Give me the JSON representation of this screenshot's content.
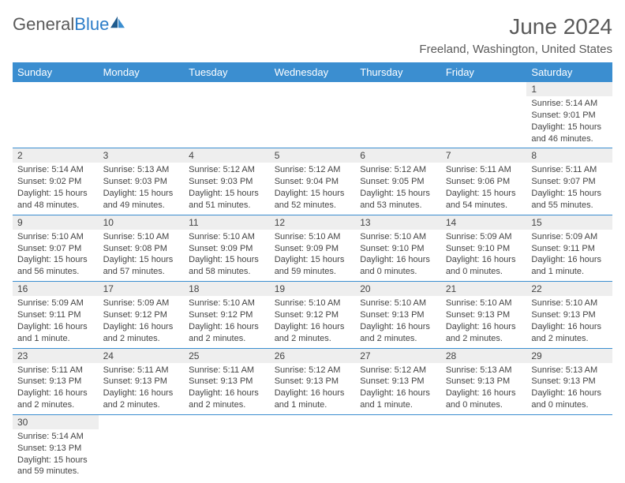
{
  "brand": {
    "text1": "General",
    "text2": "Blue"
  },
  "title": "June 2024",
  "location": "Freeland, Washington, United States",
  "columns": [
    "Sunday",
    "Monday",
    "Tuesday",
    "Wednesday",
    "Thursday",
    "Friday",
    "Saturday"
  ],
  "colors": {
    "header_bg": "#3b8ed0",
    "header_text": "#ffffff",
    "daynum_bg": "#eeeeee",
    "border": "#3b8ed0",
    "text": "#444444",
    "brand_gray": "#5a5a5a",
    "brand_blue": "#2b7cc8"
  },
  "first_weekday": 6,
  "days": [
    {
      "n": 1,
      "sr": "5:14 AM",
      "ss": "9:01 PM",
      "dl": "15 hours and 46 minutes."
    },
    {
      "n": 2,
      "sr": "5:14 AM",
      "ss": "9:02 PM",
      "dl": "15 hours and 48 minutes."
    },
    {
      "n": 3,
      "sr": "5:13 AM",
      "ss": "9:03 PM",
      "dl": "15 hours and 49 minutes."
    },
    {
      "n": 4,
      "sr": "5:12 AM",
      "ss": "9:03 PM",
      "dl": "15 hours and 51 minutes."
    },
    {
      "n": 5,
      "sr": "5:12 AM",
      "ss": "9:04 PM",
      "dl": "15 hours and 52 minutes."
    },
    {
      "n": 6,
      "sr": "5:12 AM",
      "ss": "9:05 PM",
      "dl": "15 hours and 53 minutes."
    },
    {
      "n": 7,
      "sr": "5:11 AM",
      "ss": "9:06 PM",
      "dl": "15 hours and 54 minutes."
    },
    {
      "n": 8,
      "sr": "5:11 AM",
      "ss": "9:07 PM",
      "dl": "15 hours and 55 minutes."
    },
    {
      "n": 9,
      "sr": "5:10 AM",
      "ss": "9:07 PM",
      "dl": "15 hours and 56 minutes."
    },
    {
      "n": 10,
      "sr": "5:10 AM",
      "ss": "9:08 PM",
      "dl": "15 hours and 57 minutes."
    },
    {
      "n": 11,
      "sr": "5:10 AM",
      "ss": "9:09 PM",
      "dl": "15 hours and 58 minutes."
    },
    {
      "n": 12,
      "sr": "5:10 AM",
      "ss": "9:09 PM",
      "dl": "15 hours and 59 minutes."
    },
    {
      "n": 13,
      "sr": "5:10 AM",
      "ss": "9:10 PM",
      "dl": "16 hours and 0 minutes."
    },
    {
      "n": 14,
      "sr": "5:09 AM",
      "ss": "9:10 PM",
      "dl": "16 hours and 0 minutes."
    },
    {
      "n": 15,
      "sr": "5:09 AM",
      "ss": "9:11 PM",
      "dl": "16 hours and 1 minute."
    },
    {
      "n": 16,
      "sr": "5:09 AM",
      "ss": "9:11 PM",
      "dl": "16 hours and 1 minute."
    },
    {
      "n": 17,
      "sr": "5:09 AM",
      "ss": "9:12 PM",
      "dl": "16 hours and 2 minutes."
    },
    {
      "n": 18,
      "sr": "5:10 AM",
      "ss": "9:12 PM",
      "dl": "16 hours and 2 minutes."
    },
    {
      "n": 19,
      "sr": "5:10 AM",
      "ss": "9:12 PM",
      "dl": "16 hours and 2 minutes."
    },
    {
      "n": 20,
      "sr": "5:10 AM",
      "ss": "9:13 PM",
      "dl": "16 hours and 2 minutes."
    },
    {
      "n": 21,
      "sr": "5:10 AM",
      "ss": "9:13 PM",
      "dl": "16 hours and 2 minutes."
    },
    {
      "n": 22,
      "sr": "5:10 AM",
      "ss": "9:13 PM",
      "dl": "16 hours and 2 minutes."
    },
    {
      "n": 23,
      "sr": "5:11 AM",
      "ss": "9:13 PM",
      "dl": "16 hours and 2 minutes."
    },
    {
      "n": 24,
      "sr": "5:11 AM",
      "ss": "9:13 PM",
      "dl": "16 hours and 2 minutes."
    },
    {
      "n": 25,
      "sr": "5:11 AM",
      "ss": "9:13 PM",
      "dl": "16 hours and 2 minutes."
    },
    {
      "n": 26,
      "sr": "5:12 AM",
      "ss": "9:13 PM",
      "dl": "16 hours and 1 minute."
    },
    {
      "n": 27,
      "sr": "5:12 AM",
      "ss": "9:13 PM",
      "dl": "16 hours and 1 minute."
    },
    {
      "n": 28,
      "sr": "5:13 AM",
      "ss": "9:13 PM",
      "dl": "16 hours and 0 minutes."
    },
    {
      "n": 29,
      "sr": "5:13 AM",
      "ss": "9:13 PM",
      "dl": "16 hours and 0 minutes."
    },
    {
      "n": 30,
      "sr": "5:14 AM",
      "ss": "9:13 PM",
      "dl": "15 hours and 59 minutes."
    }
  ],
  "labels": {
    "sunrise": "Sunrise:",
    "sunset": "Sunset:",
    "daylight": "Daylight:"
  }
}
